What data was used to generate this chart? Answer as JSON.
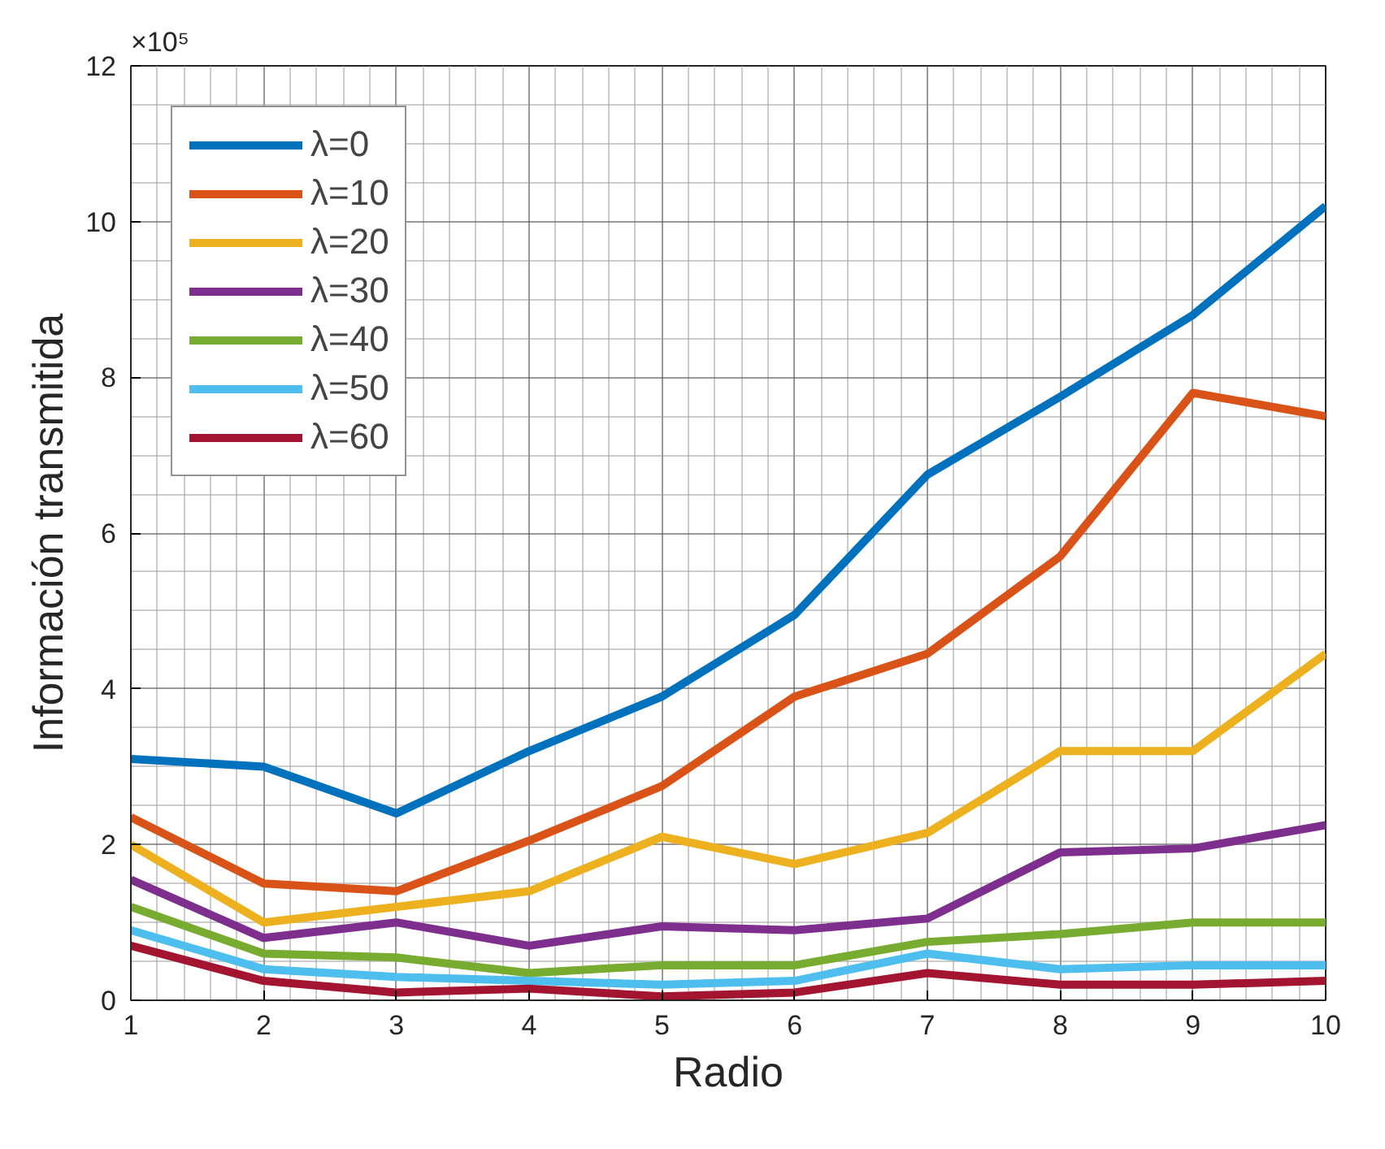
{
  "chart_data": {
    "type": "line",
    "xlabel": "Radio",
    "ylabel": "Información transmitida",
    "annotations": [
      "×10⁵"
    ],
    "x": [
      1,
      2,
      3,
      4,
      5,
      6,
      7,
      8,
      9,
      10
    ],
    "xlim": [
      1,
      10
    ],
    "xticks": [
      1,
      2,
      3,
      4,
      5,
      6,
      7,
      8,
      9,
      10
    ],
    "ylim": [
      0,
      12
    ],
    "yticks": [
      0,
      2,
      4,
      6,
      8,
      10,
      12
    ],
    "grid": true,
    "legend": "top left",
    "line_style": "solid",
    "series": [
      {
        "name": "λ=0",
        "color": "#0072bd",
        "values": [
          3.1,
          3.0,
          2.4,
          3.2,
          3.9,
          4.95,
          6.75,
          7.75,
          8.8,
          10.2
        ]
      },
      {
        "name": "λ=10",
        "color": "#d95319",
        "values": [
          2.35,
          1.5,
          1.4,
          2.05,
          2.75,
          3.9,
          4.45,
          5.7,
          7.8,
          7.5
        ]
      },
      {
        "name": "λ=20",
        "color": "#edb120",
        "values": [
          2.0,
          1.0,
          1.2,
          1.4,
          2.1,
          1.75,
          2.15,
          3.2,
          3.2,
          4.45
        ]
      },
      {
        "name": "λ=30",
        "color": "#7e2f8e",
        "values": [
          1.55,
          0.8,
          1.0,
          0.7,
          0.95,
          0.9,
          1.05,
          1.9,
          1.95,
          2.25
        ]
      },
      {
        "name": "λ=40",
        "color": "#77ac30",
        "values": [
          1.2,
          0.6,
          0.55,
          0.35,
          0.45,
          0.45,
          0.75,
          0.85,
          1.0,
          1.0
        ]
      },
      {
        "name": "λ=50",
        "color": "#4dbeee",
        "values": [
          0.9,
          0.4,
          0.3,
          0.25,
          0.2,
          0.25,
          0.6,
          0.4,
          0.45,
          0.45
        ]
      },
      {
        "name": "λ=60",
        "color": "#a2142f",
        "values": [
          0.7,
          0.25,
          0.1,
          0.15,
          0.05,
          0.1,
          0.35,
          0.2,
          0.2,
          0.25
        ]
      }
    ]
  }
}
